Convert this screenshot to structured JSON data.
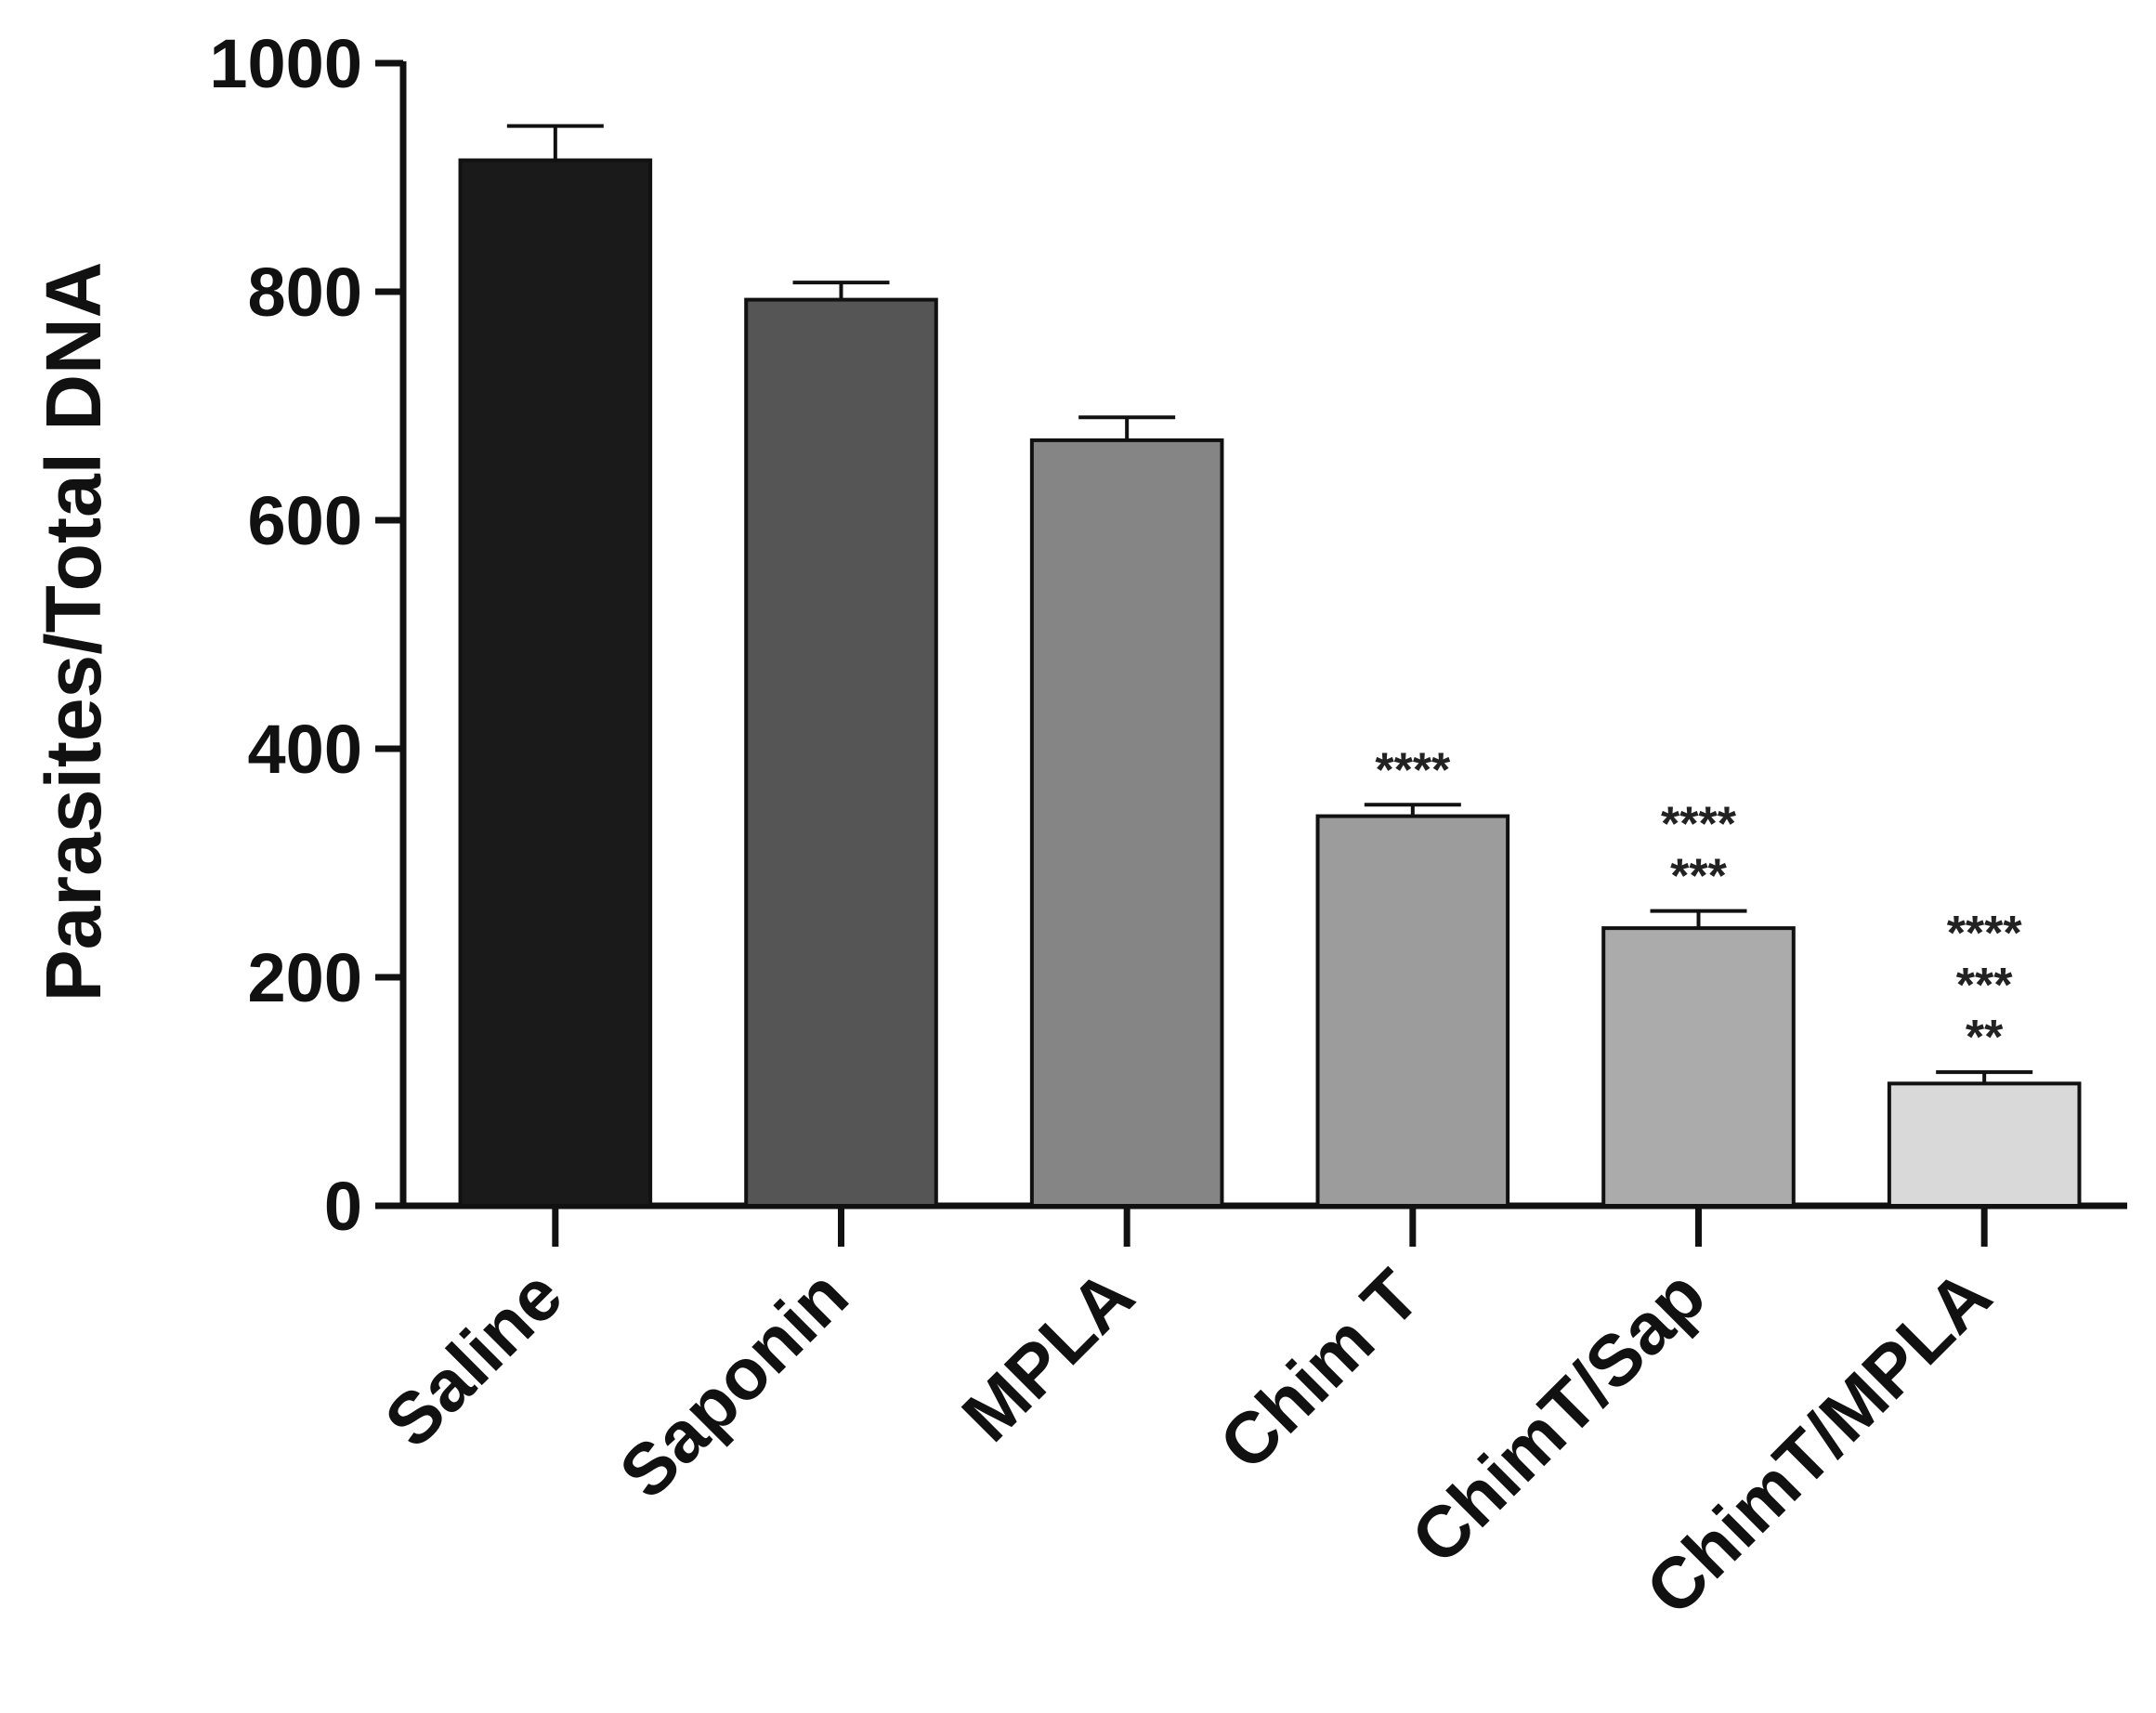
{
  "chart_data": {
    "type": "bar",
    "title": "",
    "xlabel": "",
    "ylabel": "Parasites/Total  DNA",
    "ylim": [
      0,
      1000
    ],
    "yticks": [
      "0",
      "200",
      "400",
      "600",
      "800",
      "1000"
    ],
    "grid": false,
    "legend": "none",
    "categories": [
      "Saline",
      "Saponin",
      "MPLA",
      "Chim T",
      "ChimT/Sap",
      "ChimT/MPLA"
    ],
    "values": [
      915,
      793,
      670,
      341,
      243,
      107
    ],
    "errors": [
      30,
      15,
      20,
      10,
      15,
      10
    ],
    "bar_colors": [
      "#1a1a1a",
      "#555555",
      "#858585",
      "#9c9c9c",
      "#ababab",
      "#d9d9d9"
    ],
    "significance": [
      [],
      [],
      [],
      [
        "****"
      ],
      [
        "****",
        "***"
      ],
      [
        "****",
        "***",
        "**"
      ]
    ]
  }
}
